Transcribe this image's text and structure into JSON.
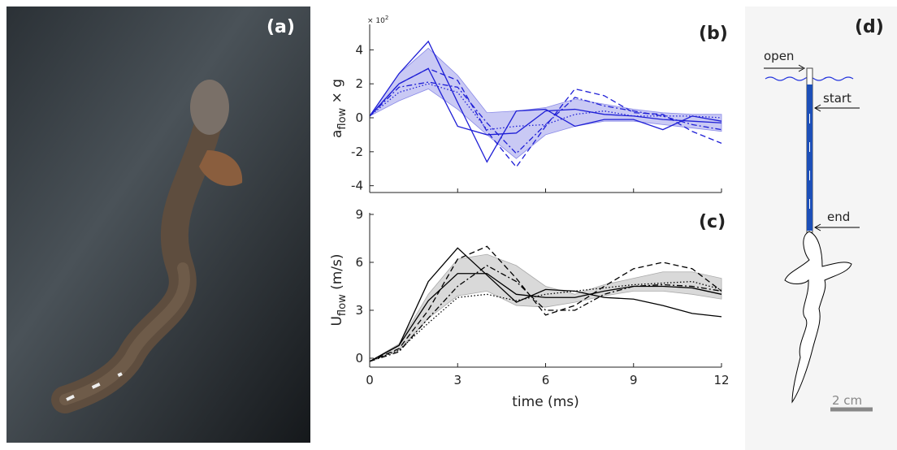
{
  "photo_label": "(a)",
  "chart_data": [
    {
      "type": "line",
      "panel_label": "(b)",
      "ylabel": "a",
      "ylabel_sub": "flow",
      "ylabel_suffix": " × g",
      "y_multiplier": "× 10",
      "y_multiplier_exp": "2",
      "x": [
        0,
        1,
        2,
        3,
        4,
        5,
        6,
        7,
        8,
        9,
        10,
        11,
        12
      ],
      "xlim": [
        0,
        12
      ],
      "xticks": [
        0,
        3,
        6,
        9,
        12
      ],
      "xtick_labels": false,
      "ylim": [
        -4.4,
        5.5
      ],
      "yticks": [
        -4,
        -2,
        0,
        2,
        4
      ],
      "band": {
        "color": "#c9c9f4",
        "edge": "#8a8ae8",
        "lower": [
          0.1,
          1.0,
          1.7,
          0.5,
          -1.0,
          -2.4,
          -1.0,
          -0.5,
          -0.2,
          -0.2,
          -0.4,
          -0.6,
          -0.8
        ],
        "upper": [
          0.1,
          2.6,
          4.1,
          2.5,
          0.3,
          0.4,
          0.6,
          1.1,
          0.8,
          0.5,
          0.3,
          0.2,
          0.2
        ]
      },
      "series": [
        {
          "color": "#1f1fd6",
          "dash": "solid",
          "values": [
            0.1,
            2.6,
            4.5,
            0.9,
            -2.6,
            0.4,
            0.5,
            -0.5,
            -0.1,
            -0.1,
            -0.7,
            0.1,
            -0.2
          ]
        },
        {
          "color": "#1f1fd6",
          "dash": "solid",
          "values": [
            0.1,
            2.0,
            2.9,
            -0.5,
            -1.0,
            -0.9,
            0.4,
            0.5,
            0.2,
            0.1,
            -0.1,
            -0.2,
            -0.3
          ]
        },
        {
          "color": "#1f1fd6",
          "dash": "dashed",
          "values": [
            0.1,
            2.0,
            2.9,
            2.2,
            -0.8,
            -2.9,
            -0.5,
            1.7,
            1.3,
            0.3,
            0.2,
            -0.8,
            -1.5
          ]
        },
        {
          "color": "#1f1fd6",
          "dash": "dashdot",
          "values": [
            0.1,
            1.8,
            2.1,
            1.8,
            -0.3,
            -2.1,
            -0.4,
            1.2,
            0.7,
            0.4,
            0.1,
            -0.4,
            -0.7
          ]
        },
        {
          "color": "#1f1fd6",
          "dash": "dotted",
          "values": [
            0.1,
            1.5,
            2.0,
            1.5,
            -0.7,
            -0.5,
            -0.4,
            0.2,
            0.4,
            0.1,
            0.1,
            0.1,
            0.0
          ]
        }
      ]
    },
    {
      "type": "line",
      "panel_label": "(c)",
      "ylabel": "U",
      "ylabel_sub": "flow",
      "ylabel_suffix": " (m/s)",
      "xlabel": "time (ms)",
      "x": [
        0,
        1,
        2,
        3,
        4,
        5,
        6,
        7,
        8,
        9,
        10,
        11,
        12
      ],
      "xlim": [
        0,
        12
      ],
      "xticks": [
        0,
        3,
        6,
        9,
        12
      ],
      "ylim": [
        -0.56,
        9.1
      ],
      "yticks": [
        0,
        3,
        6,
        9
      ],
      "band": {
        "color": "#d9d9d9",
        "edge": "#aaaaaa",
        "lower": [
          -0.2,
          0.5,
          2.5,
          3.9,
          4.2,
          3.3,
          3.2,
          3.5,
          3.9,
          4.2,
          4.2,
          4.0,
          3.7
        ],
        "upper": [
          -0.2,
          0.9,
          4.0,
          6.2,
          6.5,
          5.8,
          4.5,
          4.0,
          4.6,
          5.0,
          5.4,
          5.4,
          5.0
        ]
      },
      "series": [
        {
          "color": "#000000",
          "dash": "solid",
          "values": [
            -0.2,
            0.8,
            4.8,
            6.9,
            5.2,
            3.5,
            4.3,
            4.2,
            3.8,
            3.7,
            3.3,
            2.8,
            2.6
          ]
        },
        {
          "color": "#000000",
          "dash": "solid",
          "values": [
            -0.2,
            0.8,
            3.6,
            5.3,
            5.3,
            4.0,
            3.8,
            3.8,
            4.2,
            4.5,
            4.5,
            4.4,
            4.0
          ]
        },
        {
          "color": "#000000",
          "dash": "dashed",
          "values": [
            -0.2,
            0.6,
            3.0,
            6.2,
            7.0,
            5.0,
            2.7,
            3.3,
            4.5,
            5.6,
            6.0,
            5.6,
            4.2
          ]
        },
        {
          "color": "#000000",
          "dash": "dashdot",
          "values": [
            -0.2,
            0.4,
            2.5,
            4.5,
            5.8,
            4.8,
            3.0,
            3.0,
            4.0,
            4.5,
            4.6,
            4.5,
            4.2
          ]
        },
        {
          "color": "#000000",
          "dash": "dotted",
          "values": [
            -0.2,
            0.5,
            2.2,
            3.8,
            4.0,
            3.6,
            4.0,
            4.2,
            4.4,
            4.6,
            4.7,
            4.8,
            4.3
          ]
        }
      ]
    }
  ],
  "diagram": {
    "panel_label": "(d)",
    "open": "open",
    "start": "start",
    "end": "end",
    "scale": "2 cm"
  }
}
